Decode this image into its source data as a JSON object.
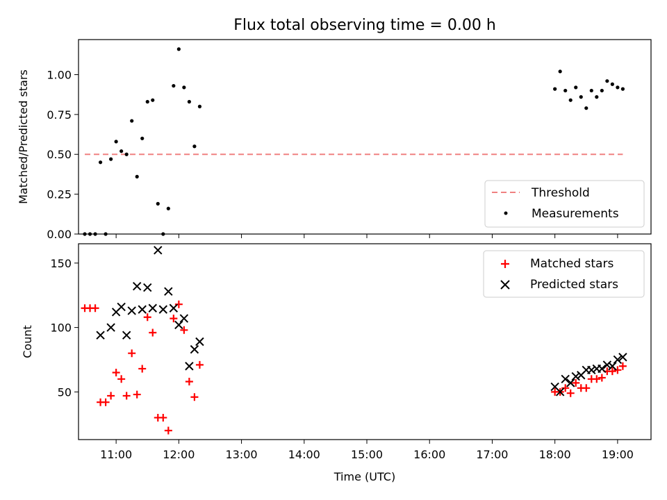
{
  "chart_data": [
    {
      "type": "scatter",
      "title": "Flux total observing time = 0.00 h",
      "xlabel": "",
      "ylabel": "Matched/Predicted stars",
      "xlim": [
        "10:24",
        "19:32"
      ],
      "ylim": [
        0,
        1.22
      ],
      "yticks": [
        "0.00",
        "0.25",
        "0.50",
        "0.75",
        "1.00"
      ],
      "legend": "bottom-right",
      "series": [
        {
          "name": "Threshold",
          "kind": "dashed-line",
          "color": "#f08080",
          "x": [
            "10:30",
            "19:05"
          ],
          "y": [
            0.5,
            0.5
          ]
        },
        {
          "name": "Measurements",
          "kind": "dot",
          "color": "#000000",
          "x": [
            "10:30",
            "10:35",
            "10:40",
            "10:45",
            "10:50",
            "10:55",
            "11:00",
            "11:05",
            "11:10",
            "11:15",
            "11:20",
            "11:25",
            "11:30",
            "11:35",
            "11:40",
            "11:45",
            "11:50",
            "11:55",
            "12:00",
            "12:05",
            "12:10",
            "12:15",
            "12:20",
            "18:00",
            "18:05",
            "18:10",
            "18:15",
            "18:20",
            "18:25",
            "18:30",
            "18:35",
            "18:40",
            "18:45",
            "18:50",
            "18:55",
            "19:00",
            "19:05"
          ],
          "y": [
            0.0,
            0.0,
            0.0,
            0.45,
            0.0,
            0.47,
            0.58,
            0.52,
            0.5,
            0.71,
            0.36,
            0.6,
            0.83,
            0.84,
            0.19,
            0.0,
            0.16,
            0.93,
            1.16,
            0.92,
            0.83,
            0.55,
            0.8,
            0.91,
            1.02,
            0.9,
            0.84,
            0.92,
            0.86,
            0.79,
            0.9,
            0.86,
            0.9,
            0.96,
            0.94,
            0.92,
            0.91
          ]
        }
      ]
    },
    {
      "type": "scatter",
      "title": "",
      "xlabel": "Time (UTC)",
      "ylabel": "Count",
      "xlim": [
        "10:24",
        "19:32"
      ],
      "ylim": [
        13,
        165
      ],
      "yticks": [
        "50",
        "100",
        "150"
      ],
      "xticks": [
        "11:00",
        "12:00",
        "13:00",
        "14:00",
        "15:00",
        "16:00",
        "17:00",
        "18:00",
        "19:00"
      ],
      "legend": "top-right",
      "series": [
        {
          "name": "Matched stars",
          "kind": "plus",
          "color": "#ff0000",
          "x": [
            "10:30",
            "10:35",
            "10:40",
            "10:45",
            "10:50",
            "10:55",
            "11:00",
            "11:05",
            "11:10",
            "11:15",
            "11:20",
            "11:25",
            "11:30",
            "11:35",
            "11:40",
            "11:45",
            "11:50",
            "11:55",
            "12:00",
            "12:05",
            "12:10",
            "12:15",
            "12:20",
            "18:00",
            "18:05",
            "18:10",
            "18:15",
            "18:20",
            "18:25",
            "18:30",
            "18:35",
            "18:40",
            "18:45",
            "18:50",
            "18:55",
            "19:00",
            "19:05"
          ],
          "y": [
            115,
            115,
            115,
            42,
            42,
            47,
            65,
            60,
            47,
            80,
            48,
            68,
            108,
            96,
            30,
            30,
            20,
            107,
            118,
            98,
            58,
            46,
            71,
            50,
            50,
            53,
            49,
            57,
            53,
            53,
            60,
            60,
            61,
            66,
            66,
            67,
            70
          ]
        },
        {
          "name": "Predicted stars",
          "kind": "x",
          "color": "#000000",
          "x": [
            "10:45",
            "10:55",
            "11:00",
            "11:05",
            "11:10",
            "11:15",
            "11:20",
            "11:25",
            "11:30",
            "11:35",
            "11:40",
            "11:45",
            "11:50",
            "11:55",
            "12:00",
            "12:05",
            "12:10",
            "12:15",
            "12:20",
            "18:00",
            "18:05",
            "18:10",
            "18:15",
            "18:20",
            "18:25",
            "18:30",
            "18:35",
            "18:40",
            "18:45",
            "18:50",
            "18:55",
            "19:00",
            "19:05"
          ],
          "y": [
            94,
            100,
            112,
            116,
            94,
            113,
            132,
            114,
            131,
            115,
            160,
            114,
            128,
            115,
            102,
            107,
            70,
            83,
            89,
            54,
            50,
            60,
            57,
            62,
            63,
            67,
            67,
            68,
            68,
            71,
            70,
            75,
            77
          ]
        }
      ]
    }
  ]
}
